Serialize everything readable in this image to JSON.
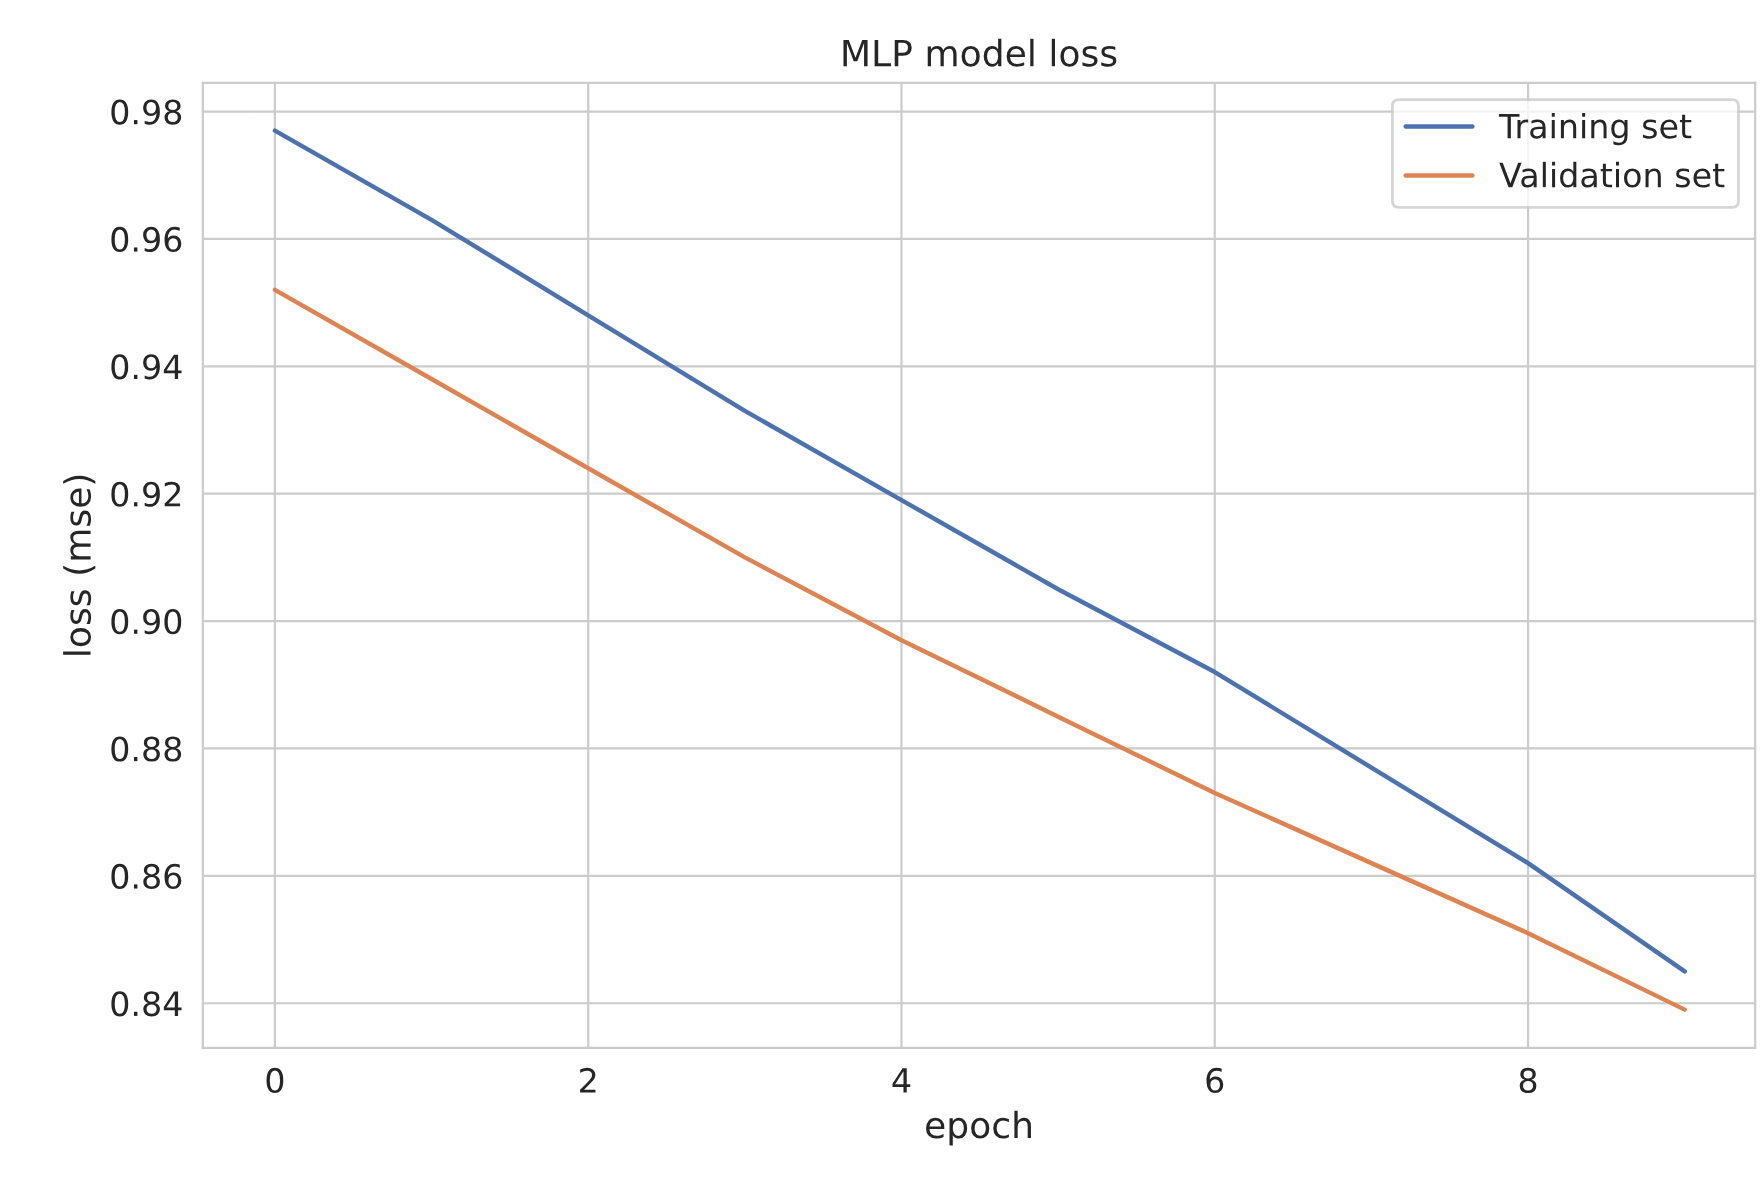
{
  "chart_data": {
    "type": "line",
    "title": "MLP model loss",
    "xlabel": "epoch",
    "ylabel": "loss (mse)",
    "x": [
      0,
      1,
      2,
      3,
      4,
      5,
      6,
      7,
      8,
      9
    ],
    "series": [
      {
        "name": "Training set",
        "color": "#4c72b0",
        "values": [
          0.977,
          0.963,
          0.948,
          0.933,
          0.919,
          0.905,
          0.892,
          0.877,
          0.862,
          0.845
        ]
      },
      {
        "name": "Validation set",
        "color": "#dd8452",
        "values": [
          0.952,
          0.938,
          0.924,
          0.91,
          0.897,
          0.885,
          0.873,
          0.862,
          0.851,
          0.839
        ]
      }
    ],
    "xlim": [
      -0.46,
      9.45
    ],
    "xticks": [
      0,
      2,
      4,
      6,
      8
    ],
    "ylim": [
      0.833,
      0.9845
    ],
    "yticks": [
      0.84,
      0.86,
      0.88,
      {
        "value": 0.9,
        "label": "0.90"
      },
      0.92,
      0.94,
      0.96,
      0.98
    ],
    "grid": true,
    "legend": "top right",
    "marker": "none",
    "line_style": "solid"
  }
}
